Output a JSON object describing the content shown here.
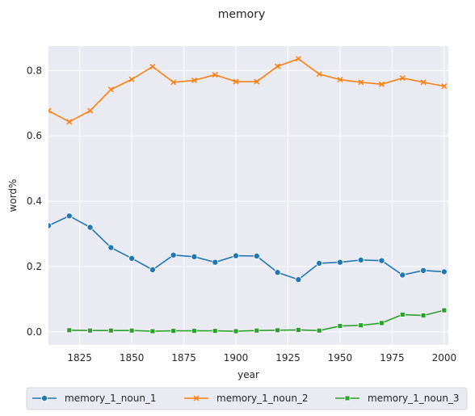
{
  "chart_data": {
    "type": "line",
    "title": "memory",
    "xlabel": "year",
    "ylabel": "word%",
    "xlim": [
      1810,
      2002
    ],
    "ylim": [
      -0.04,
      0.875
    ],
    "xticks": [
      1825,
      1850,
      1875,
      1900,
      1925,
      1950,
      1975,
      2000
    ],
    "yticks": [
      0.0,
      0.2,
      0.4,
      0.6,
      0.8
    ],
    "xtick_labels": [
      "1825",
      "1850",
      "1875",
      "1900",
      "1925",
      "1950",
      "1975",
      "2000"
    ],
    "ytick_labels": [
      "0.0",
      "0.2",
      "0.4",
      "0.6",
      "0.8"
    ],
    "grid": true,
    "legend_position": "bottom-center",
    "series": [
      {
        "name": "memory_1_noun_1",
        "color": "#1f77b4",
        "marker": "circle",
        "x": [
          1810,
          1820,
          1830,
          1840,
          1850,
          1860,
          1870,
          1880,
          1890,
          1900,
          1910,
          1920,
          1930,
          1940,
          1950,
          1960,
          1970,
          1980,
          1990,
          2000
        ],
        "y": [
          0.325,
          0.355,
          0.32,
          0.258,
          0.225,
          0.19,
          0.235,
          0.23,
          0.213,
          0.233,
          0.232,
          0.182,
          0.16,
          0.21,
          0.213,
          0.22,
          0.218,
          0.174,
          0.188,
          0.184
        ]
      },
      {
        "name": "memory_1_noun_2",
        "color": "#ff7f0e",
        "marker": "x",
        "x": [
          1810,
          1820,
          1830,
          1840,
          1850,
          1860,
          1870,
          1880,
          1890,
          1900,
          1910,
          1920,
          1930,
          1940,
          1950,
          1960,
          1970,
          1980,
          1990,
          2000
        ],
        "y": [
          0.677,
          0.643,
          0.677,
          0.742,
          0.773,
          0.812,
          0.764,
          0.77,
          0.787,
          0.766,
          0.766,
          0.813,
          0.836,
          0.789,
          0.772,
          0.764,
          0.758,
          0.777,
          0.764,
          0.752
        ]
      },
      {
        "name": "memory_1_noun_3",
        "color": "#2ca02c",
        "marker": "square",
        "x": [
          1820,
          1830,
          1840,
          1850,
          1860,
          1870,
          1880,
          1890,
          1900,
          1910,
          1920,
          1930,
          1940,
          1950,
          1960,
          1970,
          1980,
          1990,
          2000
        ],
        "y": [
          0.005,
          0.004,
          0.004,
          0.004,
          0.002,
          0.003,
          0.003,
          0.003,
          0.002,
          0.004,
          0.005,
          0.006,
          0.004,
          0.018,
          0.02,
          0.027,
          0.053,
          0.05,
          0.066
        ]
      }
    ]
  }
}
